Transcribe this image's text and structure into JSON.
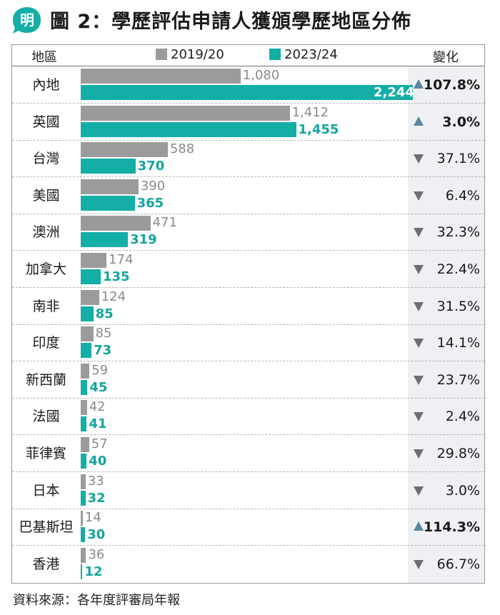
{
  "header": {
    "logo_text": "明",
    "title": "圖 2：學歷評估申請人獲頒學歷地區分佈"
  },
  "columns": {
    "region": "地區",
    "change": "變化"
  },
  "colors": {
    "series_a": "#9b9b9b",
    "series_b": "#13aea6",
    "up": "#5b86a3",
    "down": "#6d6f72"
  },
  "chart_data": {
    "type": "bar",
    "orientation": "horizontal",
    "title": "圖 2：學歷評估申請人獲頒學歷地區分佈",
    "categories": [
      "內地",
      "英國",
      "台灣",
      "美國",
      "澳洲",
      "加拿大",
      "南非",
      "印度",
      "新西蘭",
      "法國",
      "菲律賓",
      "日本",
      "巴基斯坦",
      "香港"
    ],
    "series": [
      {
        "name": "2019/20",
        "values": [
          1080,
          1412,
          588,
          390,
          471,
          174,
          124,
          85,
          59,
          42,
          57,
          33,
          14,
          36
        ],
        "labels": [
          "1,080",
          "1,412",
          "588",
          "390",
          "471",
          "174",
          "124",
          "85",
          "59",
          "42",
          "57",
          "33",
          "14",
          "36"
        ]
      },
      {
        "name": "2023/24",
        "values": [
          2244,
          1455,
          370,
          365,
          319,
          135,
          85,
          73,
          45,
          41,
          40,
          32,
          30,
          12
        ],
        "labels": [
          "2,244",
          "1,455",
          "370",
          "365",
          "319",
          "135",
          "85",
          "73",
          "45",
          "41",
          "40",
          "32",
          "30",
          "12"
        ]
      }
    ],
    "changes": [
      {
        "dir": "up",
        "label": "107.8%"
      },
      {
        "dir": "up",
        "label": "3.0%"
      },
      {
        "dir": "down",
        "label": "37.1%"
      },
      {
        "dir": "down",
        "label": "6.4%"
      },
      {
        "dir": "down",
        "label": "32.3%"
      },
      {
        "dir": "down",
        "label": "22.4%"
      },
      {
        "dir": "down",
        "label": "31.5%"
      },
      {
        "dir": "down",
        "label": "14.1%"
      },
      {
        "dir": "down",
        "label": "23.7%"
      },
      {
        "dir": "down",
        "label": "2.4%"
      },
      {
        "dir": "down",
        "label": "29.8%"
      },
      {
        "dir": "down",
        "label": "3.0%"
      },
      {
        "dir": "up",
        "label": "114.3%"
      },
      {
        "dir": "down",
        "label": "66.7%"
      }
    ],
    "xlim": [
      0,
      2244
    ],
    "legend_position": "top",
    "grid": false
  },
  "footer": {
    "source": "資料來源：各年度評審局年報"
  }
}
